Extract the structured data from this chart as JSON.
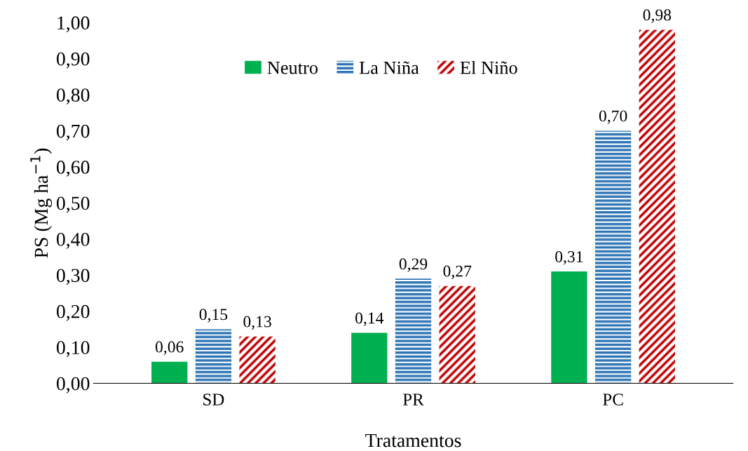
{
  "chart_data": {
    "type": "bar",
    "xlabel": "Tratamentos",
    "ylabel": "PS (Mg ha$^{−1}$)",
    "categories": [
      "SD",
      "PR",
      "PC"
    ],
    "series": [
      {
        "name": "Neutro",
        "color": "#00b050",
        "values": [
          0.06,
          0.14,
          0.31
        ],
        "value_labels": [
          "0,06",
          "0,14",
          "0,31"
        ]
      },
      {
        "name": "La Niña",
        "color": "#2e75b6",
        "values": [
          0.15,
          0.29,
          0.7
        ],
        "value_labels": [
          "0,15",
          "0,29",
          "0,70"
        ]
      },
      {
        "name": "El Niño",
        "color": "#c00000",
        "values": [
          0.13,
          0.27,
          0.98
        ],
        "value_labels": [
          "0,13",
          "0,27",
          "0,98"
        ]
      }
    ],
    "ylim": [
      0,
      1
    ],
    "yticks": [
      {
        "value": 0,
        "label": "0,00"
      },
      {
        "value": 0.1,
        "label": "0,10"
      },
      {
        "value": 0.2,
        "label": "0,20"
      },
      {
        "value": 0.3,
        "label": "0,30"
      },
      {
        "value": 0.4,
        "label": "0,40"
      },
      {
        "value": 0.5,
        "label": "0,50"
      },
      {
        "value": 0.6,
        "label": "0,60"
      },
      {
        "value": 0.7,
        "label": "0,70"
      },
      {
        "value": 0.8,
        "label": "0,80"
      },
      {
        "value": 0.9,
        "label": "0,90"
      },
      {
        "value": 1.0,
        "label": "1,00"
      }
    ],
    "grid": false,
    "legend": "top"
  }
}
